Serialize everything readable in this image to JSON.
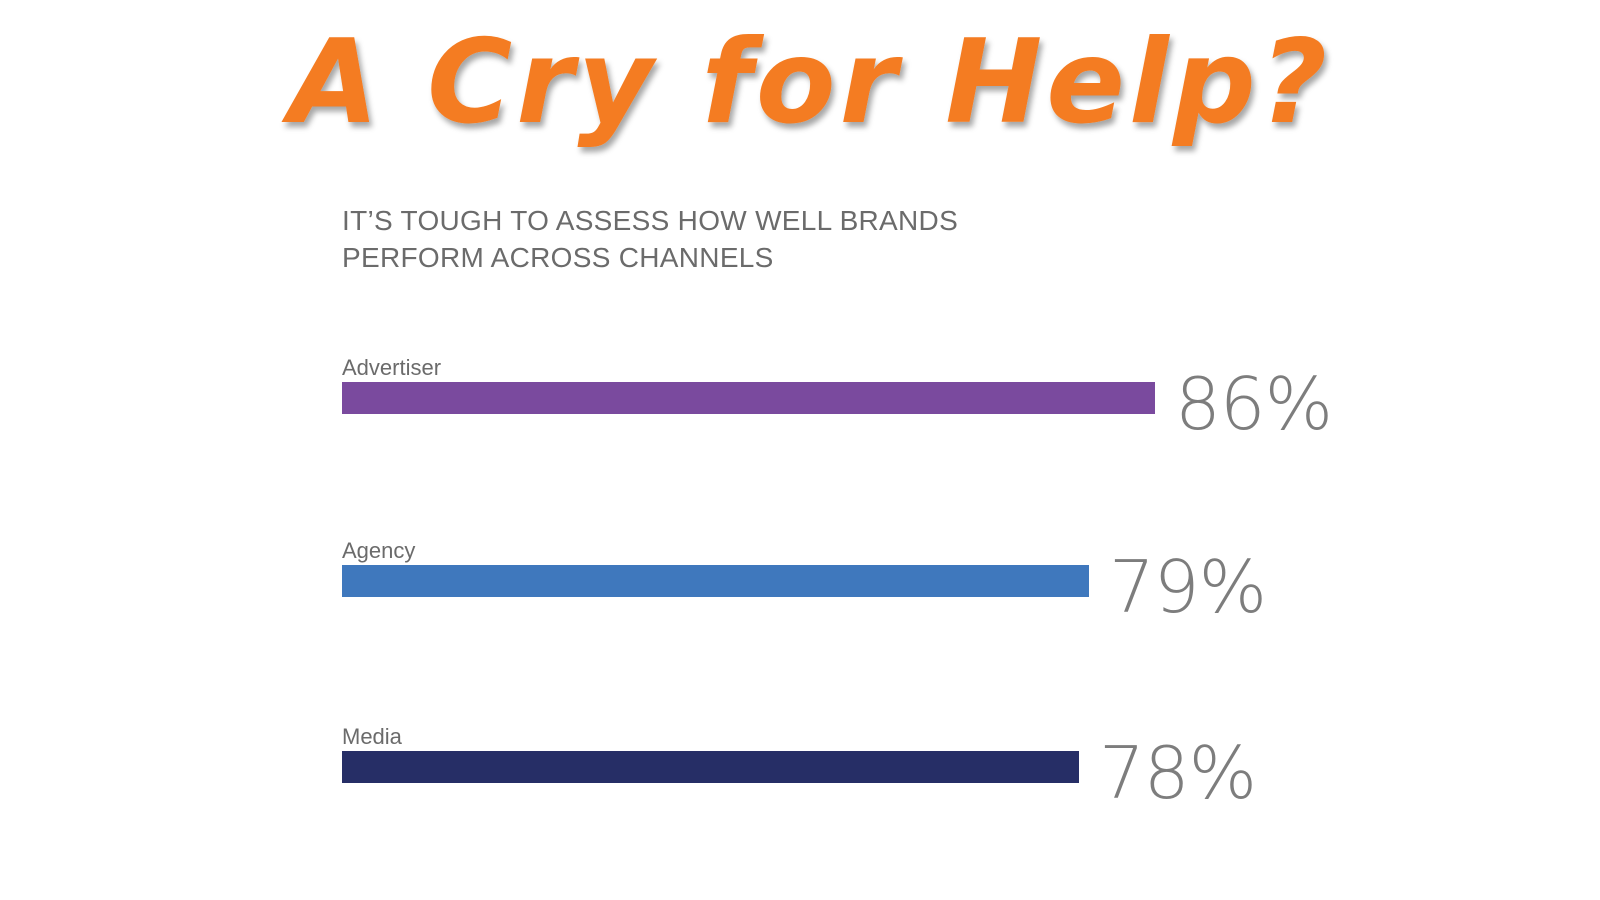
{
  "headline": {
    "text": "A Cry for Help?",
    "color": "#f47c20"
  },
  "chart_data": {
    "type": "bar",
    "orientation": "horizontal",
    "title": "IT’S TOUGH TO ASSESS HOW WELL BRANDS PERFORM ACROSS CHANNELS",
    "categories": [
      "Advertiser",
      "Agency",
      "Media"
    ],
    "values": [
      86,
      79,
      78
    ],
    "value_labels": [
      "86%",
      "79%",
      "78%"
    ],
    "colors": [
      "#7a4a9e",
      "#3f78bd",
      "#262e66"
    ],
    "xlim": [
      0,
      100
    ],
    "grid": false,
    "legend": "none"
  }
}
